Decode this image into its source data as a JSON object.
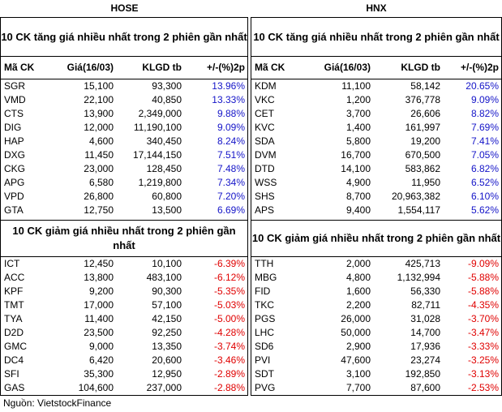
{
  "source": "Nguồn: VietstockFinance",
  "columns": [
    "Mã CK",
    "Giá(16/03)",
    "KLGD tb",
    "+/-(%)2p"
  ],
  "hose": {
    "exchange": "HOSE",
    "gainers_title": "10 CK tăng giá nhiều nhất trong 2 phiên gần nhất",
    "gainers": [
      [
        "SGR",
        "15,100",
        "93,300",
        "13.96%"
      ],
      [
        "VMD",
        "22,100",
        "40,850",
        "13.33%"
      ],
      [
        "CTS",
        "13,900",
        "2,349,000",
        "9.88%"
      ],
      [
        "DIG",
        "12,000",
        "11,190,100",
        "9.09%"
      ],
      [
        "HAP",
        "4,600",
        "340,450",
        "8.24%"
      ],
      [
        "DXG",
        "11,450",
        "17,144,150",
        "7.51%"
      ],
      [
        "CKG",
        "23,000",
        "128,450",
        "7.48%"
      ],
      [
        "APG",
        "6,580",
        "1,219,800",
        "7.34%"
      ],
      [
        "VPD",
        "26,800",
        "60,800",
        "7.20%"
      ],
      [
        "GTA",
        "12,750",
        "13,500",
        "6.69%"
      ]
    ],
    "losers_title": "10 CK giảm giá nhiều nhất trong 2 phiên gần nhất",
    "losers": [
      [
        "ICT",
        "12,450",
        "10,100",
        "-6.39%"
      ],
      [
        "ACC",
        "13,800",
        "483,100",
        "-6.12%"
      ],
      [
        "KPF",
        "9,200",
        "90,300",
        "-5.35%"
      ],
      [
        "TMT",
        "17,000",
        "57,100",
        "-5.03%"
      ],
      [
        "TYA",
        "11,400",
        "42,150",
        "-5.00%"
      ],
      [
        "D2D",
        "23,500",
        "92,250",
        "-4.28%"
      ],
      [
        "GMC",
        "9,000",
        "13,350",
        "-3.74%"
      ],
      [
        "DC4",
        "6,420",
        "20,600",
        "-3.46%"
      ],
      [
        "SFI",
        "35,300",
        "12,950",
        "-2.89%"
      ],
      [
        "GAS",
        "104,600",
        "237,000",
        "-2.88%"
      ]
    ]
  },
  "hnx": {
    "exchange": "HNX",
    "gainers_title": "10 CK tăng giá nhiều nhất trong 2 phiên gần nhất",
    "gainers": [
      [
        "KDM",
        "11,100",
        "58,142",
        "20.65%"
      ],
      [
        "VKC",
        "1,200",
        "376,778",
        "9.09%"
      ],
      [
        "CET",
        "3,700",
        "26,606",
        "8.82%"
      ],
      [
        "KVC",
        "1,400",
        "161,997",
        "7.69%"
      ],
      [
        "SDA",
        "5,800",
        "19,200",
        "7.41%"
      ],
      [
        "DVM",
        "16,700",
        "670,500",
        "7.05%"
      ],
      [
        "DTD",
        "14,100",
        "583,862",
        "6.82%"
      ],
      [
        "WSS",
        "4,900",
        "11,950",
        "6.52%"
      ],
      [
        "SHS",
        "8,700",
        "20,963,382",
        "6.10%"
      ],
      [
        "APS",
        "9,400",
        "1,554,117",
        "5.62%"
      ]
    ],
    "losers_title": "10 CK giảm giá nhiều nhất trong 2 phiên gần nhất",
    "losers": [
      [
        "TTH",
        "2,000",
        "425,713",
        "-9.09%"
      ],
      [
        "MBG",
        "4,800",
        "1,132,994",
        "-5.88%"
      ],
      [
        "FID",
        "1,600",
        "56,330",
        "-5.88%"
      ],
      [
        "TKC",
        "2,200",
        "82,711",
        "-4.35%"
      ],
      [
        "PGS",
        "26,000",
        "31,028",
        "-3.70%"
      ],
      [
        "LHC",
        "50,000",
        "14,700",
        "-3.47%"
      ],
      [
        "SD6",
        "2,900",
        "17,936",
        "-3.33%"
      ],
      [
        "PVI",
        "47,600",
        "23,274",
        "-3.25%"
      ],
      [
        "SDT",
        "3,100",
        "192,850",
        "-3.13%"
      ],
      [
        "PVG",
        "7,700",
        "87,600",
        "-2.53%"
      ]
    ]
  },
  "colors": {
    "gain": "#1414c8",
    "loss": "#e00000"
  }
}
